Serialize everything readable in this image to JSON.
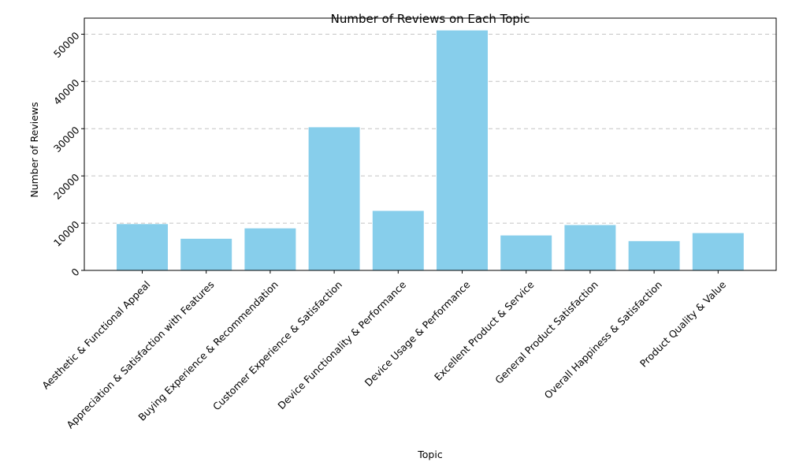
{
  "chart_data": {
    "type": "bar",
    "title": "Number of Reviews on Each Topic",
    "xlabel": "Topic",
    "ylabel": "Number of Reviews",
    "categories": [
      "Aesthetic & Functional Appeal",
      "Appreciation & Satisfaction with Features",
      "Buying Experience & Recommendation",
      "Customer Experience & Satisfaction",
      "Device Functionality & Performance",
      "Device Usage & Performance",
      "Excellent Product & Service",
      "General Product Satisfaction",
      "Overall Happiness & Satisfaction",
      "Product Quality & Value"
    ],
    "values": [
      9800,
      6700,
      8900,
      30300,
      12600,
      50800,
      7400,
      9600,
      6200,
      7900
    ],
    "ylim": [
      0,
      53400
    ],
    "yticks": [
      0,
      10000,
      20000,
      30000,
      40000,
      50000
    ],
    "grid": "y-dashed",
    "bar_color": "#87ceeb",
    "legend": "none"
  }
}
